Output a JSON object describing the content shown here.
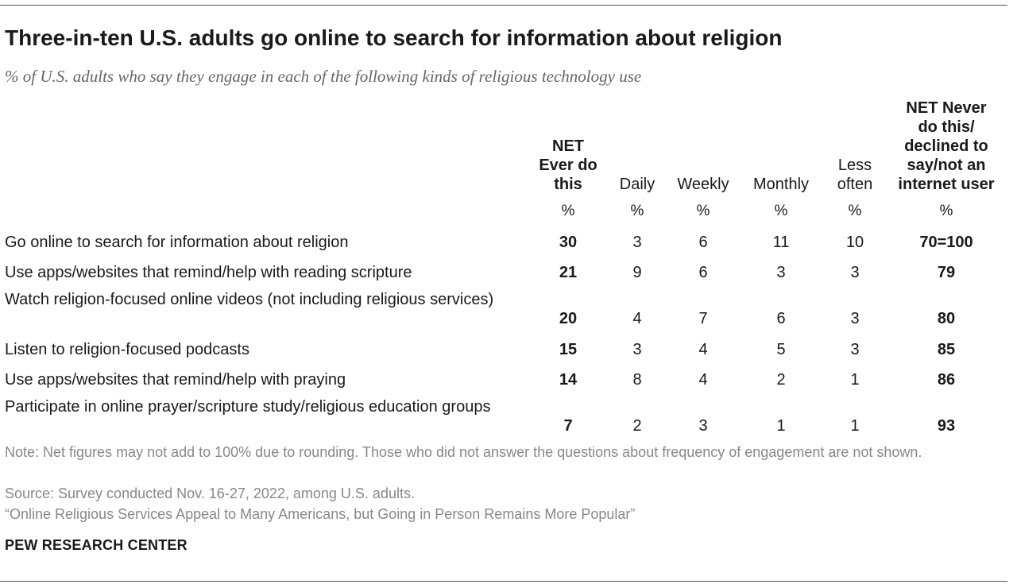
{
  "title": "Three-in-ten U.S. adults go online to search for information about religion",
  "subtitle": "% of U.S. adults who say they engage in each of the following kinds of religious technology use",
  "chart_data": {
    "type": "table",
    "columns": [
      {
        "key": "net_ever",
        "label": [
          "NET",
          "Ever do",
          "this"
        ],
        "unit": "%",
        "bold": true
      },
      {
        "key": "daily",
        "label": [
          "Daily"
        ],
        "unit": "%",
        "bold": false
      },
      {
        "key": "weekly",
        "label": [
          "Weekly"
        ],
        "unit": "%",
        "bold": false
      },
      {
        "key": "monthly",
        "label": [
          "Monthly"
        ],
        "unit": "%",
        "bold": false
      },
      {
        "key": "less_often",
        "label": [
          "Less",
          "often"
        ],
        "unit": "%",
        "bold": false
      },
      {
        "key": "net_never",
        "label": [
          "NET Never",
          "do this/",
          "declined to",
          "say/not an",
          "internet user"
        ],
        "unit": "%",
        "bold": true
      }
    ],
    "rows": [
      {
        "label": "Go online to search for information about religion",
        "values": [
          "30",
          "3",
          "6",
          "11",
          "10",
          "70=100"
        ]
      },
      {
        "label": "Use apps/websites that remind/help with reading scripture",
        "values": [
          "21",
          "9",
          "6",
          "3",
          "3",
          "79"
        ]
      },
      {
        "label": "Watch religion-focused online videos (not including religious services)",
        "values": [
          "20",
          "4",
          "7",
          "6",
          "3",
          "80"
        ]
      },
      {
        "label": "Listen to religion-focused podcasts",
        "values": [
          "15",
          "3",
          "4",
          "5",
          "3",
          "85"
        ]
      },
      {
        "label": "Use apps/websites that remind/help with praying",
        "values": [
          "14",
          "8",
          "4",
          "2",
          "1",
          "86"
        ]
      },
      {
        "label": "Participate in online prayer/scripture study/religious education groups",
        "values": [
          "7",
          "2",
          "3",
          "1",
          "1",
          "93"
        ]
      }
    ]
  },
  "notes": {
    "note": "Note: Net figures may not add to 100% due to rounding. Those who did not answer the questions about frequency of engagement are not shown.",
    "source": "Source: Survey conducted Nov. 16-27, 2022, among U.S. adults.",
    "report": "“Online Religious Services Appeal to Many Americans, but Going in Person Remains More Popular”"
  },
  "brand": "PEW RESEARCH CENTER"
}
